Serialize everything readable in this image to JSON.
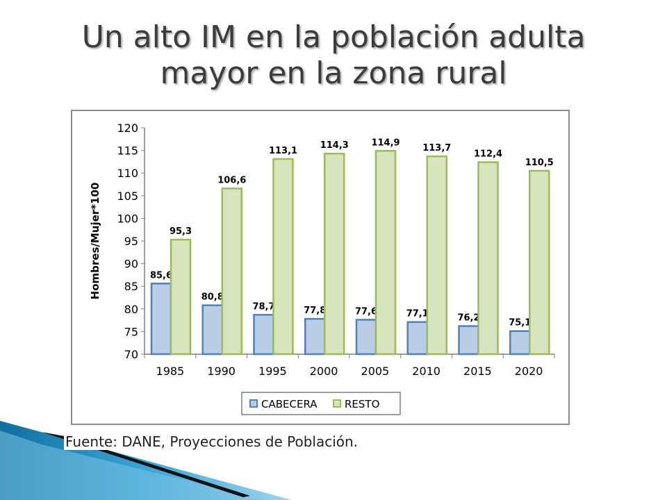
{
  "title": {
    "line1": "Un alto IM en la población adulta",
    "line2": "mayor en la zona rural"
  },
  "source": "Fuente: DANE, Proyecciones de Población.",
  "colors": {
    "cabecera_fill": "#b9cde5",
    "cabecera_stroke": "#4f81bd",
    "resto_fill": "#d7e4bd",
    "resto_stroke": "#9bbb59",
    "decor_blue": "#1f8fc4",
    "decor_dark": "#111111"
  },
  "chart_data": {
    "type": "bar",
    "title": "",
    "xlabel": "",
    "ylabel": "Hombres/Mujer*100",
    "categories": [
      "1985",
      "1990",
      "1995",
      "2000",
      "2005",
      "2010",
      "2015",
      "2020"
    ],
    "ylim": [
      70,
      120
    ],
    "yticks": [
      "70",
      "75",
      "80",
      "85",
      "90",
      "95",
      "100",
      "105",
      "110",
      "115",
      "120"
    ],
    "grid": false,
    "legend_position": "bottom",
    "series": [
      {
        "name": "CABECERA",
        "values": [
          85.6,
          80.8,
          78.7,
          77.8,
          77.6,
          77.1,
          76.2,
          75.1
        ],
        "labels": [
          "85,6",
          "80,8",
          "78,7",
          "77,8",
          "77,6",
          "77,1",
          "76,2",
          "75,1"
        ]
      },
      {
        "name": "RESTO",
        "values": [
          95.3,
          106.6,
          113.1,
          114.3,
          114.9,
          113.7,
          112.4,
          110.5
        ],
        "labels": [
          "95,3",
          "106,6",
          "113,1",
          "114,3",
          "114,9",
          "113,7",
          "112,4",
          "110,5"
        ]
      }
    ]
  }
}
